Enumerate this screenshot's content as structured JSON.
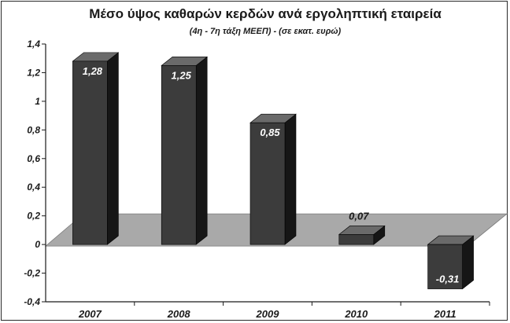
{
  "chart_data": {
    "type": "bar",
    "title": "Μέσο ύψος καθαρών κερδών ανά εργοληπτική εταιρεία",
    "subtitle": "(4η - 7η τάξη ΜΕΕΠ) - (σε εκατ. ευρώ)",
    "categories": [
      "2007",
      "2008",
      "2009",
      "2010",
      "2011"
    ],
    "values": [
      1.28,
      1.25,
      0.85,
      0.07,
      -0.31
    ],
    "data_labels": [
      "1,28",
      "1,25",
      "0,85",
      "0,07",
      "-0,31"
    ],
    "y_ticks": [
      "1,4",
      "1,2",
      "1",
      "0,8",
      "0,6",
      "0,4",
      "0,2",
      "0",
      "-0,2",
      "-0,4"
    ],
    "y_tick_values": [
      1.4,
      1.2,
      1.0,
      0.8,
      0.6,
      0.4,
      0.2,
      0,
      -0.2,
      -0.4
    ],
    "ylim": [
      -0.4,
      1.4
    ],
    "xlabel": "",
    "ylabel": "",
    "grid": false,
    "style": "3d-bar",
    "colors": {
      "bar_front": "#3c3c3c",
      "bar_side": "#161616",
      "bar_top": "#6a6a6a",
      "floor": "#a9a9a9",
      "axis": "#1a1a1a"
    }
  }
}
